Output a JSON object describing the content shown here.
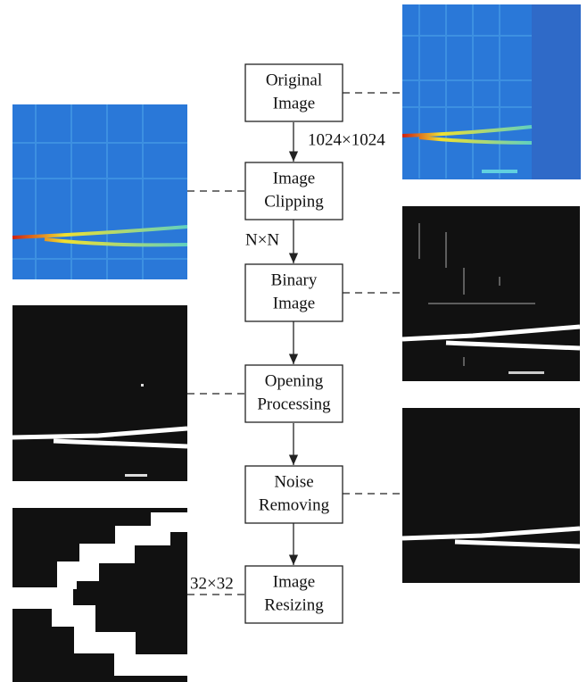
{
  "nodes": [
    {
      "lines": [
        "Original",
        "Image"
      ]
    },
    {
      "lines": [
        "Image",
        "Clipping"
      ]
    },
    {
      "lines": [
        "Binary",
        "Image"
      ]
    },
    {
      "lines": [
        "Opening",
        "Processing"
      ]
    },
    {
      "lines": [
        "Noise",
        "Removing"
      ]
    },
    {
      "lines": [
        "Image",
        "Resizing"
      ]
    }
  ],
  "edge_labels": [
    "1024×1024",
    "N×N",
    "32×32"
  ]
}
